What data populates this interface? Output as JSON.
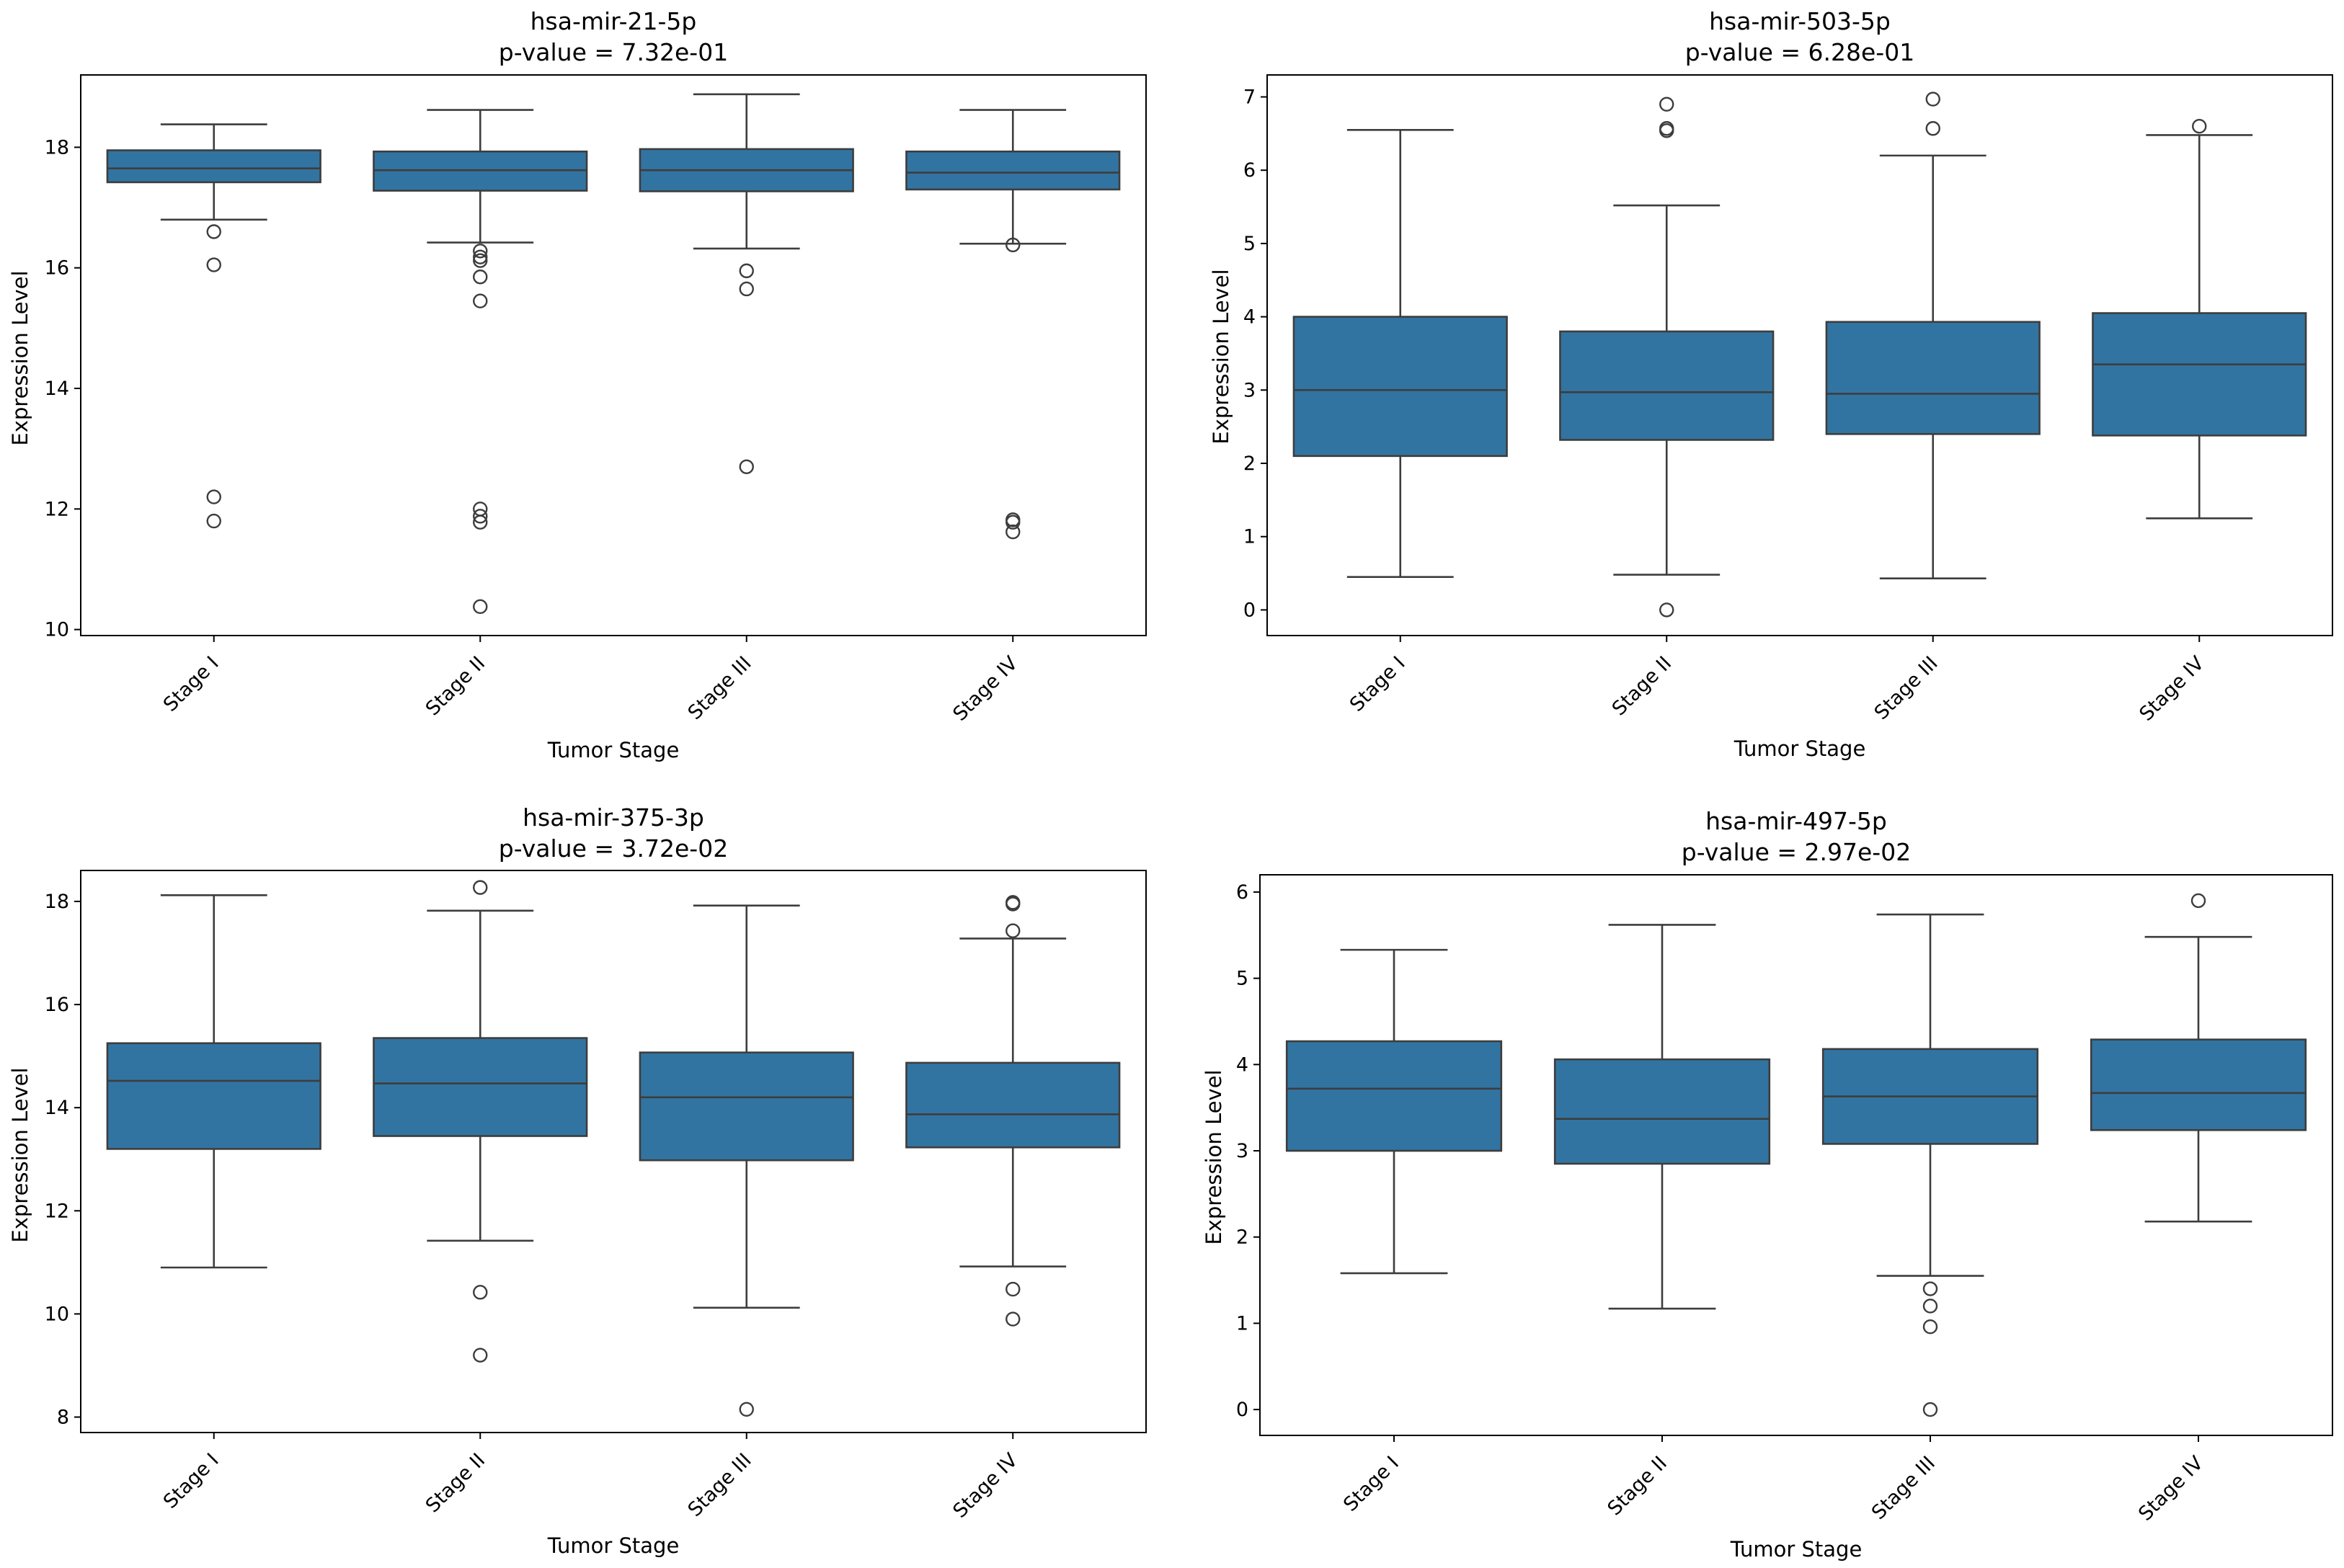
{
  "colors": {
    "box_fill": "#3274a1",
    "line": "#3d3d3d",
    "frame": "#000000",
    "background": "#ffffff"
  },
  "chart_data": [
    {
      "type": "box",
      "title": "hsa-mir-21-5p",
      "subtitle": "p-value = 7.32e-01",
      "xlabel": "Tumor Stage",
      "ylabel": "Expression Level",
      "ylim": [
        9.9,
        19.2
      ],
      "yticks": [
        10,
        12,
        14,
        16,
        18
      ],
      "categories": [
        "Stage I",
        "Stage II",
        "Stage III",
        "Stage IV"
      ],
      "boxes": [
        {
          "whisker_low": 16.8,
          "q1": 17.42,
          "median": 17.65,
          "q3": 17.95,
          "whisker_high": 18.38,
          "outliers": [
            16.6,
            16.05,
            12.2,
            11.8
          ]
        },
        {
          "whisker_low": 16.42,
          "q1": 17.28,
          "median": 17.62,
          "q3": 17.93,
          "whisker_high": 18.62,
          "outliers": [
            16.28,
            16.18,
            16.12,
            15.85,
            15.45,
            12.0,
            11.88,
            11.78,
            10.38
          ]
        },
        {
          "whisker_low": 16.32,
          "q1": 17.27,
          "median": 17.62,
          "q3": 17.97,
          "whisker_high": 18.88,
          "outliers": [
            15.95,
            15.65,
            12.7
          ]
        },
        {
          "whisker_low": 16.4,
          "q1": 17.3,
          "median": 17.58,
          "q3": 17.93,
          "whisker_high": 18.62,
          "outliers": [
            16.38,
            11.82,
            11.78,
            11.62
          ]
        }
      ]
    },
    {
      "type": "box",
      "title": "hsa-mir-503-5p",
      "subtitle": "p-value = 6.28e-01",
      "xlabel": "Tumor Stage",
      "ylabel": "Expression Level",
      "ylim": [
        -0.35,
        7.3
      ],
      "yticks": [
        0,
        1,
        2,
        3,
        4,
        5,
        6,
        7
      ],
      "categories": [
        "Stage I",
        "Stage II",
        "Stage III",
        "Stage IV"
      ],
      "boxes": [
        {
          "whisker_low": 0.45,
          "q1": 2.1,
          "median": 3.0,
          "q3": 4.0,
          "whisker_high": 6.55,
          "outliers": []
        },
        {
          "whisker_low": 0.48,
          "q1": 2.32,
          "median": 2.97,
          "q3": 3.8,
          "whisker_high": 5.52,
          "outliers": [
            6.9,
            6.57,
            6.54,
            0.0
          ]
        },
        {
          "whisker_low": 0.43,
          "q1": 2.4,
          "median": 2.95,
          "q3": 3.93,
          "whisker_high": 6.2,
          "outliers": [
            6.97,
            6.57
          ]
        },
        {
          "whisker_low": 1.25,
          "q1": 2.38,
          "median": 3.35,
          "q3": 4.05,
          "whisker_high": 6.48,
          "outliers": [
            6.6
          ]
        }
      ]
    },
    {
      "type": "box",
      "title": "hsa-mir-375-3p",
      "subtitle": "p-value = 3.72e-02",
      "xlabel": "Tumor Stage",
      "ylabel": "Expression Level",
      "ylim": [
        7.7,
        18.6
      ],
      "yticks": [
        8,
        10,
        12,
        14,
        16,
        18
      ],
      "categories": [
        "Stage I",
        "Stage II",
        "Stage III",
        "Stage IV"
      ],
      "boxes": [
        {
          "whisker_low": 10.9,
          "q1": 13.2,
          "median": 14.52,
          "q3": 15.25,
          "whisker_high": 18.12,
          "outliers": []
        },
        {
          "whisker_low": 11.42,
          "q1": 13.45,
          "median": 14.47,
          "q3": 15.35,
          "whisker_high": 17.82,
          "outliers": [
            18.27,
            10.42,
            9.2
          ]
        },
        {
          "whisker_low": 10.12,
          "q1": 12.98,
          "median": 14.2,
          "q3": 15.07,
          "whisker_high": 17.92,
          "outliers": [
            8.15
          ]
        },
        {
          "whisker_low": 10.92,
          "q1": 13.23,
          "median": 13.87,
          "q3": 14.87,
          "whisker_high": 17.28,
          "outliers": [
            17.98,
            17.95,
            17.43,
            10.48,
            9.9
          ]
        }
      ]
    },
    {
      "type": "box",
      "title": "hsa-mir-497-5p",
      "subtitle": "p-value = 2.97e-02",
      "xlabel": "Tumor Stage",
      "ylabel": "Expression Level",
      "ylim": [
        -0.3,
        6.2
      ],
      "yticks": [
        0,
        1,
        2,
        3,
        4,
        5,
        6
      ],
      "categories": [
        "Stage I",
        "Stage II",
        "Stage III",
        "Stage IV"
      ],
      "boxes": [
        {
          "whisker_low": 1.58,
          "q1": 3.0,
          "median": 3.72,
          "q3": 4.27,
          "whisker_high": 5.33,
          "outliers": []
        },
        {
          "whisker_low": 1.17,
          "q1": 2.85,
          "median": 3.37,
          "q3": 4.06,
          "whisker_high": 5.62,
          "outliers": []
        },
        {
          "whisker_low": 1.55,
          "q1": 3.08,
          "median": 3.63,
          "q3": 4.18,
          "whisker_high": 5.74,
          "outliers": [
            1.4,
            1.2,
            0.96,
            0.0
          ]
        },
        {
          "whisker_low": 2.18,
          "q1": 3.24,
          "median": 3.67,
          "q3": 4.29,
          "whisker_high": 5.48,
          "outliers": [
            5.9
          ]
        }
      ]
    }
  ]
}
